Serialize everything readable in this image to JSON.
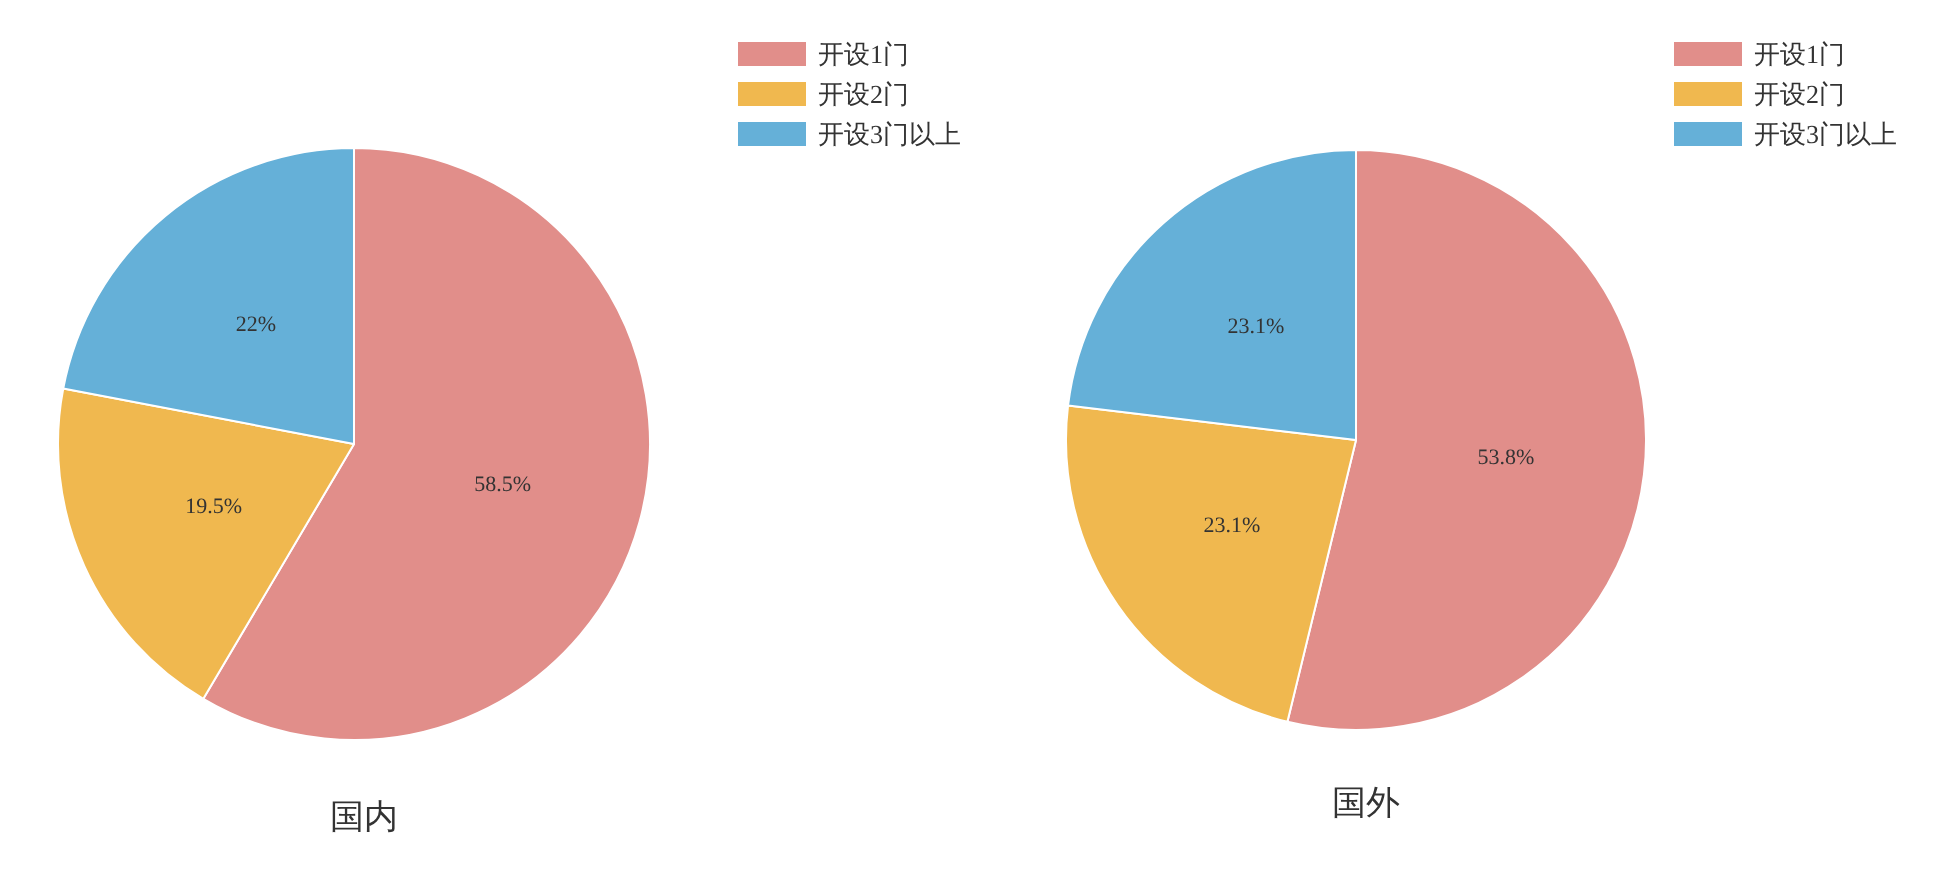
{
  "chart_data": [
    {
      "type": "pie",
      "title": "国内",
      "categories": [
        "开设1门",
        "开设2门",
        "开设3门以上"
      ],
      "values": [
        58.5,
        19.5,
        22
      ],
      "value_labels": [
        "58.5%",
        "19.5%",
        "22%"
      ],
      "colors": [
        "#e18e8a",
        "#f0b84f",
        "#65b0d8"
      ],
      "legend": "top right"
    },
    {
      "type": "pie",
      "title": "国外",
      "categories": [
        "开设1门",
        "开设2门",
        "开设3门以上"
      ],
      "values": [
        53.8,
        23.1,
        23.1
      ],
      "value_labels": [
        "53.8%",
        "23.1%",
        "23.1%"
      ],
      "colors": [
        "#e18e8a",
        "#f0b84f",
        "#65b0d8"
      ],
      "legend": "top right"
    }
  ]
}
